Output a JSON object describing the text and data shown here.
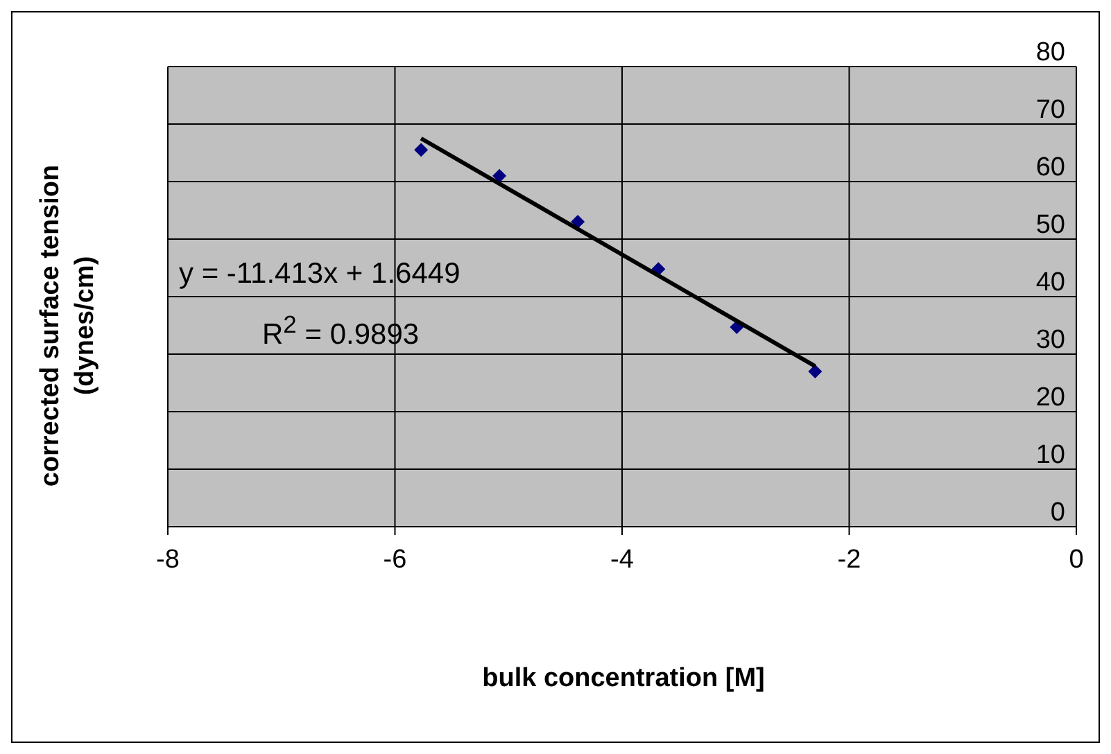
{
  "chart_data": {
    "type": "scatter",
    "xlabel": "bulk concentration [M]",
    "ylabel": "corrected surface tension\n(dynes/cm)",
    "xlim": [
      -8,
      0
    ],
    "xticks": [
      -8,
      -6,
      -4,
      -2,
      0
    ],
    "ylim": [
      0,
      80
    ],
    "yticks": [
      0,
      10,
      20,
      30,
      40,
      50,
      60,
      70,
      80
    ],
    "grid": true,
    "legend": false,
    "series": [
      {
        "marker": "diamond",
        "color": "#000080",
        "x": [
          -5.77,
          -5.08,
          -4.39,
          -3.68,
          -2.99,
          -2.3
        ],
        "values": [
          65.5,
          61.0,
          53.0,
          44.8,
          34.7,
          27.0
        ]
      },
      {
        "type": "line",
        "color": "#000000",
        "x": [
          -5.77,
          -2.3
        ],
        "values": [
          67.5,
          27.9
        ]
      }
    ],
    "annotations": [
      "y = -11.413x + 1.6449",
      "R$^{2}$ = 0.9893"
    ]
  }
}
